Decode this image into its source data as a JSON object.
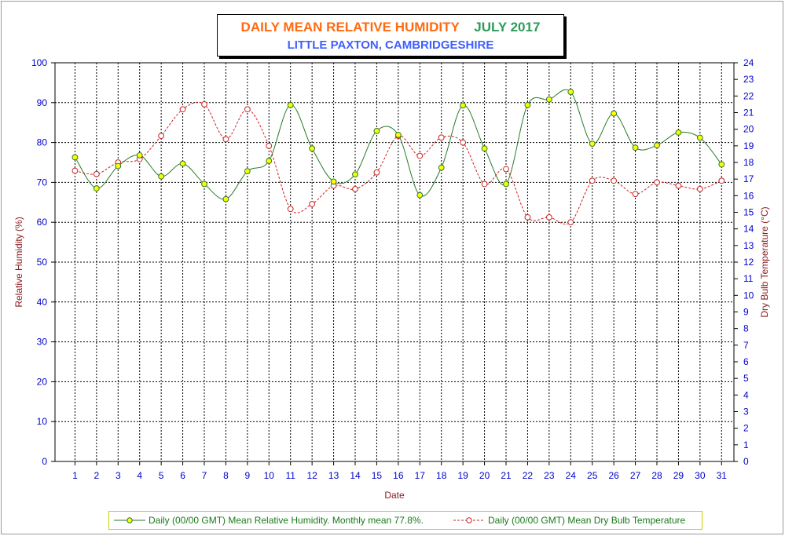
{
  "chart_data": {
    "type": "line",
    "title": "DAILY MEAN RELATIVE HUMIDITY",
    "title_period": "JULY 2017",
    "subtitle": "LITTLE PAXTON, CAMBRIDGESHIRE",
    "xlabel": "Date",
    "ylabel_left": "Relative Humidity (%)",
    "ylabel_right": "Dry Bulb Temperature (°C)",
    "x": [
      1,
      2,
      3,
      4,
      5,
      6,
      7,
      8,
      9,
      10,
      11,
      12,
      13,
      14,
      15,
      16,
      17,
      18,
      19,
      20,
      21,
      22,
      23,
      24,
      25,
      26,
      27,
      28,
      29,
      30,
      31
    ],
    "ylim_left": [
      0,
      100
    ],
    "ylim_right": [
      0,
      24
    ],
    "yticks_left": [
      0,
      10,
      20,
      30,
      40,
      50,
      60,
      70,
      80,
      90,
      100
    ],
    "yticks_right": [
      0,
      1,
      2,
      3,
      4,
      5,
      6,
      7,
      8,
      9,
      10,
      11,
      12,
      13,
      14,
      15,
      16,
      17,
      18,
      19,
      20,
      21,
      22,
      23,
      24
    ],
    "grid": true,
    "legend_position": "bottom",
    "series": [
      {
        "name": "Daily (00/00 GMT) Mean Relative Humidity. Monthly mean 77.8%.",
        "axis": "left",
        "color": "#2a7a2a",
        "marker_color": "#ffff00",
        "style": "solid",
        "values": [
          76.3,
          68.5,
          74.1,
          76.8,
          71.5,
          74.7,
          69.6,
          65.8,
          72.8,
          75.4,
          89.4,
          78.5,
          70.2,
          72.0,
          82.9,
          81.9,
          66.8,
          73.7,
          89.3,
          78.5,
          69.6,
          89.4,
          90.8,
          92.7,
          79.7,
          87.3,
          78.7,
          79.3,
          82.5,
          81.2,
          74.5
        ]
      },
      {
        "name": "Daily (00/00 GMT) Mean Dry Bulb Temperature",
        "axis": "right",
        "color": "#cc2222",
        "marker_color": "#ffffff",
        "style": "dashed",
        "values": [
          17.5,
          17.3,
          18.0,
          18.2,
          19.6,
          21.2,
          21.5,
          19.4,
          21.2,
          19.0,
          15.2,
          15.5,
          16.6,
          16.4,
          17.4,
          19.6,
          18.4,
          19.5,
          19.2,
          16.7,
          17.6,
          14.7,
          14.7,
          14.4,
          16.9,
          16.9,
          16.1,
          16.8,
          16.6,
          16.4,
          16.9
        ]
      }
    ]
  }
}
